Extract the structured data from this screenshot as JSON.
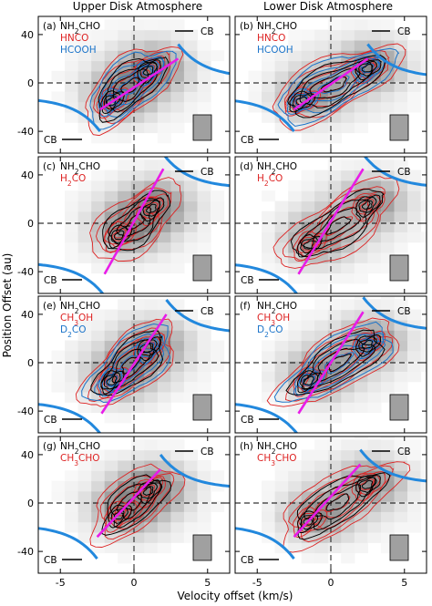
{
  "figure": {
    "col_titles": [
      "Upper Disk Atmosphere",
      "Lower Disk Atmosphere"
    ],
    "ylabel": "Position Offset (au)",
    "xlabel": "Velocity offset (km/s)",
    "x_ticks": [
      -5,
      0,
      5
    ],
    "y_ticks": [
      40,
      0,
      -40
    ],
    "cb_label": "CB",
    "colors": {
      "NH2CHO": "#000000",
      "red_species": "#dd2222",
      "blue_species": "#1a73c9",
      "keplerian_curve": "#2288dd",
      "fit_line": "#e81ce8",
      "beam": "#a0a0a0"
    }
  },
  "chart_data": [
    {
      "type": "contour",
      "panel": "(a)",
      "legend": [
        {
          "text": "NH2CHO",
          "color": "#000000"
        },
        {
          "text": "HNCO",
          "color": "#dd2222"
        },
        {
          "text": "HCOOH",
          "color": "#1a73c9"
        }
      ],
      "xlim": [
        -6.5,
        6.5
      ],
      "ylim": [
        -58,
        55
      ],
      "fit_line": [
        [
          -2.3,
          -22
        ],
        [
          3.0,
          20
        ]
      ],
      "emission_peaks": [
        [
          -1.5,
          -15
        ],
        [
          1.0,
          10
        ]
      ]
    },
    {
      "type": "contour",
      "panel": "(b)",
      "legend": [
        {
          "text": "NH2CHO",
          "color": "#000000"
        },
        {
          "text": "HNCO",
          "color": "#dd2222"
        },
        {
          "text": "HCOOH",
          "color": "#1a73c9"
        }
      ],
      "xlim": [
        -6.5,
        6.5
      ],
      "ylim": [
        -58,
        55
      ],
      "fit_line": [
        [
          -2.5,
          -22
        ],
        [
          2.5,
          20
        ]
      ],
      "emission_peaks": [
        [
          -2.0,
          -15
        ],
        [
          2.5,
          12
        ]
      ]
    },
    {
      "type": "contour",
      "panel": "(c)",
      "legend": [
        {
          "text": "NH2CHO",
          "color": "#000000"
        },
        {
          "text": "H2CO",
          "color": "#dd2222"
        }
      ],
      "xlim": [
        -6.5,
        6.5
      ],
      "ylim": [
        -58,
        55
      ],
      "fit_line": [
        [
          -2.0,
          -42
        ],
        [
          2.0,
          45
        ]
      ],
      "emission_peaks": [
        [
          -1.0,
          -10
        ],
        [
          1.2,
          12
        ]
      ]
    },
    {
      "type": "contour",
      "panel": "(d)",
      "legend": [
        {
          "text": "NH2CHO",
          "color": "#000000"
        },
        {
          "text": "H2CO",
          "color": "#dd2222"
        }
      ],
      "xlim": [
        -6.5,
        6.5
      ],
      "ylim": [
        -58,
        55
      ],
      "fit_line": [
        [
          -2.2,
          -42
        ],
        [
          2.2,
          45
        ]
      ],
      "emission_peaks": [
        [
          -1.5,
          -18
        ],
        [
          2.5,
          15
        ]
      ]
    },
    {
      "type": "contour",
      "panel": "(e)",
      "legend": [
        {
          "text": "NH2CHO",
          "color": "#000000"
        },
        {
          "text": "CH3OH",
          "color": "#dd2222"
        },
        {
          "text": "D2CO",
          "color": "#1a73c9"
        }
      ],
      "xlim": [
        -6.5,
        6.5
      ],
      "ylim": [
        -58,
        55
      ],
      "fit_line": [
        [
          -2.2,
          -42
        ],
        [
          2.2,
          40
        ]
      ],
      "emission_peaks": [
        [
          -1.5,
          -15
        ],
        [
          1.0,
          12
        ]
      ]
    },
    {
      "type": "contour",
      "panel": "(f)",
      "legend": [
        {
          "text": "NH2CHO",
          "color": "#000000"
        },
        {
          "text": "CH3OH",
          "color": "#dd2222"
        },
        {
          "text": "D2CO",
          "color": "#1a73c9"
        }
      ],
      "xlim": [
        -6.5,
        6.5
      ],
      "ylim": [
        -58,
        55
      ],
      "fit_line": [
        [
          -2.2,
          -42
        ],
        [
          2.2,
          42
        ]
      ],
      "emission_peaks": [
        [
          -1.5,
          -15
        ],
        [
          2.5,
          15
        ]
      ]
    },
    {
      "type": "contour",
      "panel": "(g)",
      "legend": [
        {
          "text": "NH2CHO",
          "color": "#000000"
        },
        {
          "text": "CH3CHO",
          "color": "#dd2222"
        }
      ],
      "xlim": [
        -6.5,
        6.5
      ],
      "ylim": [
        -58,
        55
      ],
      "fit_line": [
        [
          -2.5,
          -28
        ],
        [
          1.8,
          28
        ]
      ],
      "emission_peaks": [
        [
          -1.0,
          -10
        ],
        [
          1.0,
          10
        ]
      ]
    },
    {
      "type": "contour",
      "panel": "(h)",
      "legend": [
        {
          "text": "NH2CHO",
          "color": "#000000"
        },
        {
          "text": "CH3CHO",
          "color": "#dd2222"
        }
      ],
      "xlim": [
        -6.5,
        6.5
      ],
      "ylim": [
        -58,
        55
      ],
      "fit_line": [
        [
          -2.5,
          -28
        ],
        [
          2.0,
          32
        ]
      ],
      "emission_peaks": [
        [
          -1.5,
          -15
        ],
        [
          2.5,
          15
        ]
      ]
    }
  ]
}
